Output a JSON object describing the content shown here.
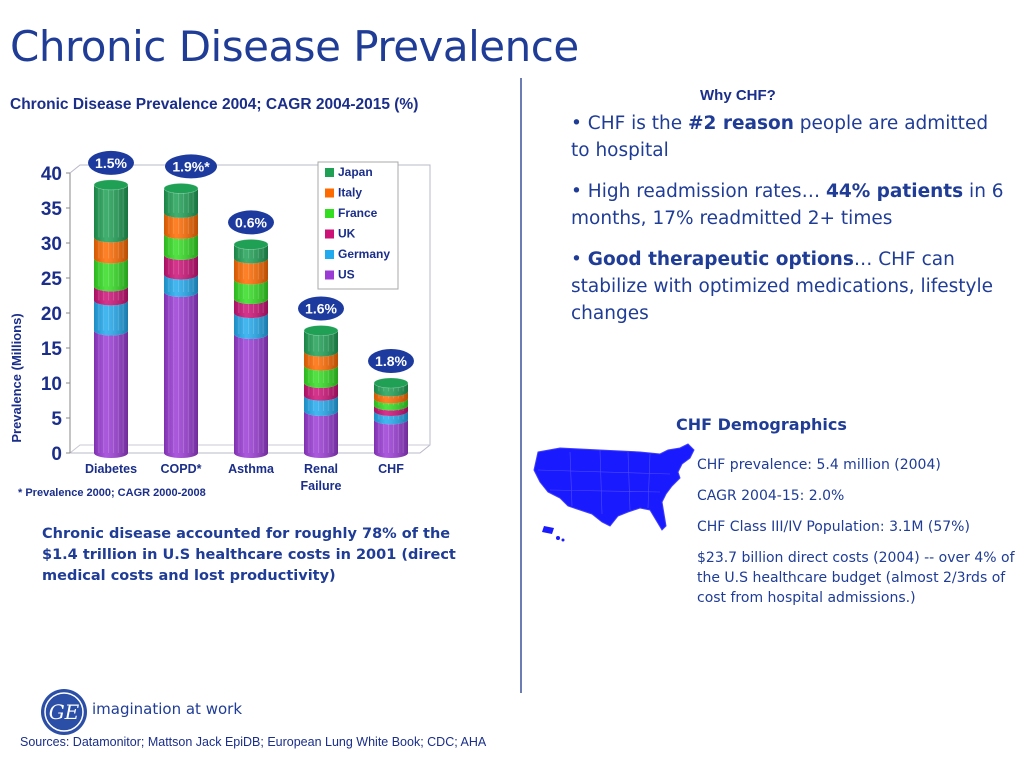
{
  "page": {
    "title": "Chronic Disease Prevalence",
    "footnote": "* Prevalence 2000; CAGR 2000-2008",
    "summary": "Chronic disease accounted for roughly 78% of the $1.4 trillion in U.S healthcare costs in 2001 (direct medical costs and lost productivity)",
    "why_title": "Why CHF?",
    "bullets": [
      {
        "pre": "• CHF is the ",
        "bold": "#2 reason",
        "post": " people are admitted to hospital"
      },
      {
        "pre": "• High readmission rates… ",
        "bold": "44% patients",
        "post": " in 6 months, 17% readmitted 2+ times"
      },
      {
        "pre": "• ",
        "bold": "Good therapeutic options",
        "post": "… CHF can stabilize with optimized medications, lifestyle changes"
      }
    ],
    "demographics_title": "CHF Demographics",
    "demographics": [
      "CHF prevalence: 5.4 million (2004)",
      "CAGR 2004-15: 2.0%",
      "CHF Class III/IV Population: 3.1M (57%)",
      "$23.7 billion direct costs (2004) -- over 4% of the U.S healthcare budget (almost 2/3rds of cost from hospital admissions.)"
    ],
    "tagline": "imagination at work",
    "logo_text": "GE",
    "sources": "Sources: Datamonitor; Mattson Jack EpiDB; European Lung White Book; CDC; AHA"
  },
  "colors": {
    "US": "#9b3bd6",
    "Germany": "#22aaee",
    "UK": "#cc1177",
    "France": "#33dd22",
    "Italy": "#ff6a00",
    "Japan": "#1fa055",
    "badge": "#1d3a9e",
    "text": "#1a2e8a",
    "map": "#1a1aff"
  },
  "chart_data": {
    "type": "bar",
    "stacked": true,
    "title": "Chronic Disease Prevalence 2004; CAGR 2004-2015 (%)",
    "ylabel": "Prevalence (Millions)",
    "xlabel": "",
    "ylim": [
      0,
      40
    ],
    "yticks": [
      0,
      5,
      10,
      15,
      20,
      25,
      30,
      35,
      40
    ],
    "categories": [
      "Diabetes",
      "COPD*",
      "Asthma",
      "Renal Failure",
      "CHF"
    ],
    "cagr_labels": [
      "1.5%",
      "1.9%*",
      "0.6%",
      "1.6%",
      "1.8%"
    ],
    "series": [
      {
        "name": "US",
        "values": [
          17.5,
          23,
          17,
          6,
          4.8
        ]
      },
      {
        "name": "Germany",
        "values": [
          4.3,
          2.5,
          3,
          2.2,
          1.2
        ]
      },
      {
        "name": "UK",
        "values": [
          2,
          2.8,
          2,
          1.8,
          0.8
        ]
      },
      {
        "name": "France",
        "values": [
          4,
          3,
          2.8,
          2.5,
          1
        ]
      },
      {
        "name": "Italy",
        "values": [
          3,
          3,
          3,
          2,
          1
        ]
      },
      {
        "name": "Japan",
        "values": [
          7.5,
          3.5,
          2,
          3,
          1.2
        ]
      }
    ],
    "legend_order": [
      "Japan",
      "Italy",
      "France",
      "UK",
      "Germany",
      "US"
    ],
    "legend_position": "top-right",
    "grid": false
  }
}
